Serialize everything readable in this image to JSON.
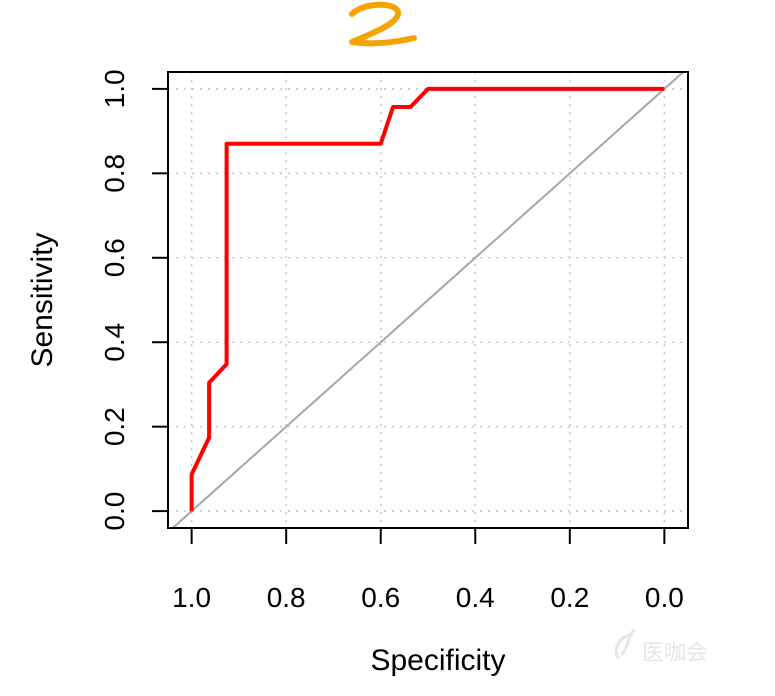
{
  "annotation": {
    "text": "2",
    "color": "#f5a300"
  },
  "watermark": {
    "text": "医咖会"
  },
  "colors": {
    "roc": "#ff0000",
    "diagonal": "#a6a6a6",
    "grid": "#c8c8c8",
    "frame": "#000000"
  },
  "chart_data": {
    "type": "line",
    "title": "",
    "xlabel": "Specificity",
    "ylabel": "Sensitivity",
    "x_reversed": true,
    "xlim": [
      1.05,
      -0.05
    ],
    "ylim": [
      -0.04,
      1.04
    ],
    "x_ticks": [
      "1.0",
      "0.8",
      "0.6",
      "0.4",
      "0.2",
      "0.0"
    ],
    "y_ticks": [
      "0.0",
      "0.2",
      "0.4",
      "0.6",
      "0.8",
      "1.0"
    ],
    "grid": true,
    "series": [
      {
        "kind": "roc",
        "x": [
          1.0,
          1.0,
          0.963,
          0.963,
          0.926,
          0.926,
          0.6,
          0.574,
          0.537,
          0.5,
          0.0
        ],
        "y": [
          0.0,
          0.087,
          0.174,
          0.304,
          0.348,
          0.87,
          0.87,
          0.957,
          0.957,
          1.0,
          1.0
        ]
      }
    ],
    "reference_line": {
      "x": [
        1.04,
        -0.04
      ],
      "y": [
        -0.04,
        1.04
      ]
    }
  }
}
